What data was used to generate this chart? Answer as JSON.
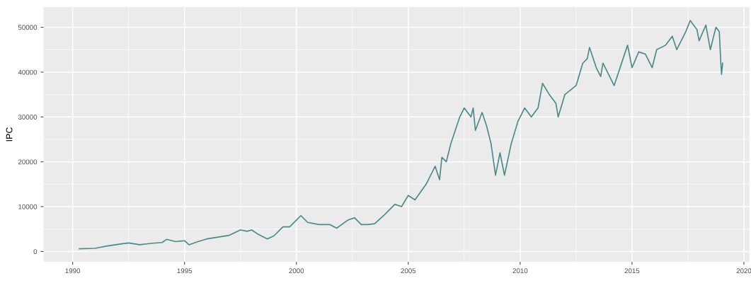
{
  "chart_data": {
    "type": "line",
    "ylabel": "IPC",
    "x": [
      1990.3,
      1991.0,
      1991.5,
      1992.2,
      1992.5,
      1993.0,
      1993.5,
      1994.0,
      1994.2,
      1994.6,
      1995.0,
      1995.2,
      1995.6,
      1996.0,
      1996.5,
      1997.0,
      1997.5,
      1997.8,
      1998.0,
      1998.3,
      1998.7,
      1999.0,
      1999.4,
      1999.7,
      2000.0,
      2000.2,
      2000.5,
      2001.0,
      2001.5,
      2001.8,
      2002.3,
      2002.6,
      2002.9,
      2003.2,
      2003.5,
      2003.9,
      2004.1,
      2004.4,
      2004.7,
      2005.0,
      2005.3,
      2005.8,
      2006.2,
      2006.4,
      2006.5,
      2006.7,
      2006.9,
      2007.3,
      2007.5,
      2007.8,
      2007.9,
      2008.0,
      2008.3,
      2008.5,
      2008.7,
      2008.9,
      2009.1,
      2009.3,
      2009.6,
      2009.9,
      2010.2,
      2010.5,
      2010.8,
      2011.0,
      2011.3,
      2011.6,
      2011.7,
      2012.0,
      2012.5,
      2012.8,
      2013.0,
      2013.1,
      2013.4,
      2013.6,
      2013.7,
      2014.0,
      2014.2,
      2014.6,
      2014.8,
      2015.0,
      2015.3,
      2015.6,
      2015.9,
      2016.1,
      2016.5,
      2016.8,
      2017.0,
      2017.4,
      2017.6,
      2017.9,
      2018.0,
      2018.3,
      2018.5,
      2018.6,
      2018.75,
      2018.9,
      2018.97,
      2019.0,
      2019.05
    ],
    "series": [
      {
        "color": "#4a8a8a",
        "values": [
          600,
          700,
          1200,
          1700,
          1900,
          1500,
          1800,
          2000,
          2700,
          2200,
          2400,
          1500,
          2200,
          2800,
          3200,
          3600,
          4800,
          4500,
          4800,
          3800,
          2800,
          3500,
          5500,
          5500,
          7000,
          8000,
          6500,
          6000,
          6000,
          5200,
          7000,
          7500,
          6000,
          6000,
          6200,
          8000,
          9000,
          10500,
          10000,
          12500,
          11500,
          15000,
          19000,
          16000,
          21000,
          20000,
          24000,
          30000,
          32000,
          30000,
          32000,
          27000,
          31000,
          28000,
          24000,
          17000,
          22000,
          17000,
          24000,
          29000,
          32000,
          30000,
          32000,
          37500,
          35000,
          33000,
          30000,
          35000,
          37000,
          42000,
          43000,
          45500,
          41000,
          39000,
          42000,
          39000,
          37000,
          43000,
          46000,
          41000,
          44500,
          44000,
          41000,
          45000,
          46000,
          48000,
          45000,
          49000,
          51500,
          49500,
          47000,
          50500,
          45000,
          47000,
          50000,
          49000,
          42000,
          39500,
          42000
        ]
      }
    ],
    "xlim": [
      1988.7,
      2020.25
    ],
    "ylim": [
      -2300,
      54500
    ],
    "xticks": [
      1990,
      1995,
      2000,
      2005,
      2010,
      2015,
      2020
    ],
    "yticks": [
      0,
      10000,
      20000,
      30000,
      40000,
      50000
    ],
    "grid": true,
    "marker": "none",
    "line_style": "solid"
  }
}
